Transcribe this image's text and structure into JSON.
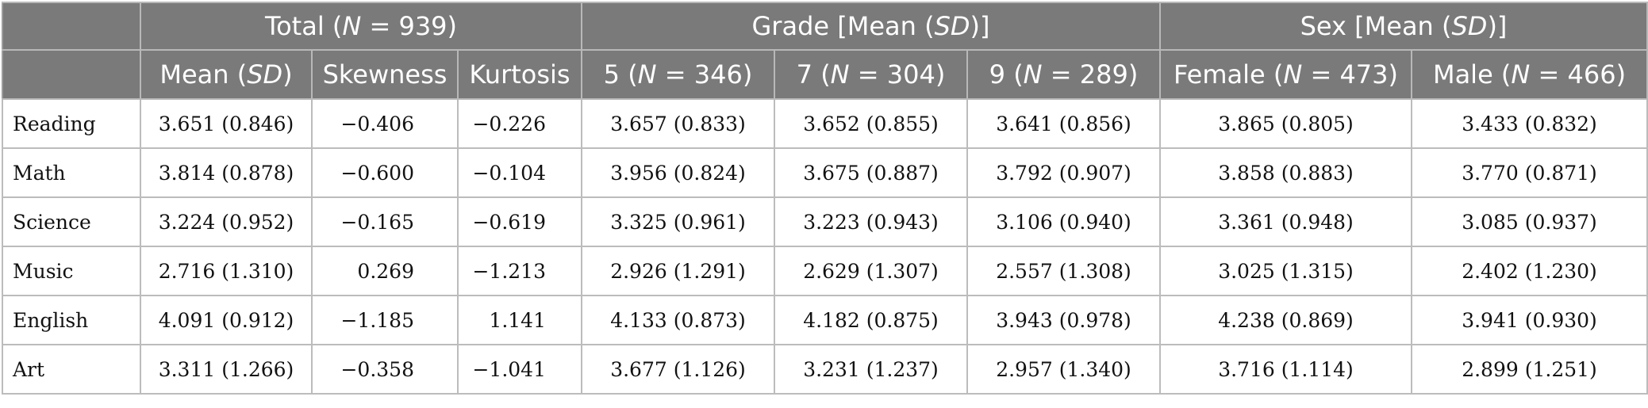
{
  "header": {
    "groups": {
      "total": "Total (N = 939)",
      "grade": "Grade [Mean (SD)]",
      "sex": "Sex [Mean (SD)]"
    },
    "columns": {
      "mean_sd": "Mean (SD)",
      "skewness": "Skewness",
      "kurtosis": "Kurtosis",
      "grade5": "5 (N = 346)",
      "grade7": "7 (N = 304)",
      "grade9": "9 (N = 289)",
      "female": "Female (N = 473)",
      "male": "Male (N = 466)"
    }
  },
  "rows": [
    {
      "subject": "Reading",
      "mean_sd": "3.651 (0.846)",
      "skewness": "−0.406",
      "kurtosis": "−0.226",
      "grade5": "3.657 (0.833)",
      "grade7": "3.652 (0.855)",
      "grade9": "3.641 (0.856)",
      "female": "3.865 (0.805)",
      "male": "3.433 (0.832)"
    },
    {
      "subject": "Math",
      "mean_sd": "3.814 (0.878)",
      "skewness": "−0.600",
      "kurtosis": "−0.104",
      "grade5": "3.956 (0.824)",
      "grade7": "3.675 (0.887)",
      "grade9": "3.792 (0.907)",
      "female": "3.858 (0.883)",
      "male": "3.770 (0.871)"
    },
    {
      "subject": "Science",
      "mean_sd": "3.224 (0.952)",
      "skewness": "−0.165",
      "kurtosis": "−0.619",
      "grade5": "3.325 (0.961)",
      "grade7": "3.223 (0.943)",
      "grade9": "3.106 (0.940)",
      "female": "3.361 (0.948)",
      "male": "3.085 (0.937)"
    },
    {
      "subject": "Music",
      "mean_sd": "2.716 (1.310)",
      "skewness": "0.269",
      "kurtosis": "−1.213",
      "grade5": "2.926 (1.291)",
      "grade7": "2.629 (1.307)",
      "grade9": "2.557 (1.308)",
      "female": "3.025 (1.315)",
      "male": "2.402 (1.230)"
    },
    {
      "subject": "English",
      "mean_sd": "4.091 (0.912)",
      "skewness": "−1.185",
      "kurtosis": "1.141",
      "grade5": "4.133 (0.873)",
      "grade7": "4.182 (0.875)",
      "grade9": "3.943 (0.978)",
      "female": "4.238 (0.869)",
      "male": "3.941 (0.930)"
    },
    {
      "subject": "Art",
      "mean_sd": "3.311 (1.266)",
      "skewness": "−0.358",
      "kurtosis": "−1.041",
      "grade5": "3.677 (1.126)",
      "grade7": "3.231 (1.237)",
      "grade9": "2.957 (1.340)",
      "female": "3.716 (1.114)",
      "male": "2.899 (1.251)"
    }
  ]
}
